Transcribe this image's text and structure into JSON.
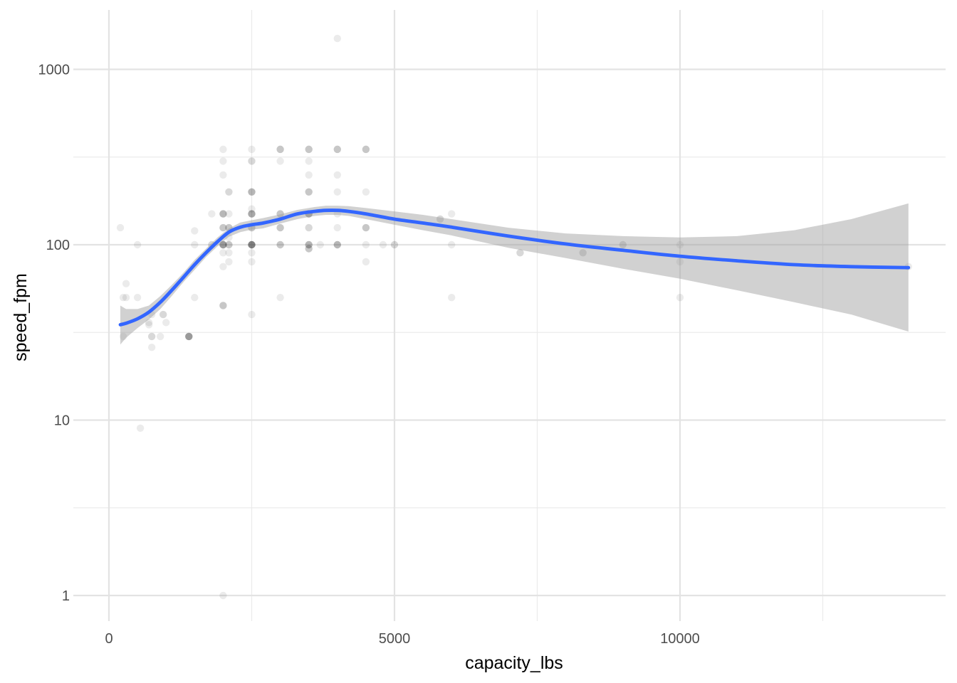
{
  "chart_data": {
    "type": "scatter",
    "title": "",
    "xlabel": "capacity_lbs",
    "ylabel": "speed_fpm",
    "xlim": [
      -50,
      14500
    ],
    "ylim_log10": [
      -0.15,
      0.375
    ],
    "y_scale": "log10",
    "grid": true,
    "xticks": [
      {
        "value": 0,
        "label": "0"
      },
      {
        "value": 5000,
        "label": "5000"
      },
      {
        "value": 10000,
        "label": "10000"
      }
    ],
    "x_minor_ticks": [
      2500,
      7500,
      12500
    ],
    "yticks": [
      {
        "value": 1,
        "label": "1"
      },
      {
        "value": 10,
        "label": "10"
      },
      {
        "value": 100,
        "label": "100"
      },
      {
        "value": 1000,
        "label": "1000"
      }
    ],
    "y_minor_ticks": [
      3.162,
      31.62,
      316.2
    ],
    "point_opacity": 0.08,
    "points": [
      [
        200,
        125
      ],
      [
        250,
        30
      ],
      [
        250,
        50
      ],
      [
        300,
        60
      ],
      [
        300,
        50
      ],
      [
        500,
        100
      ],
      [
        500,
        50
      ],
      [
        550,
        9
      ],
      [
        700,
        35
      ],
      [
        700,
        36
      ],
      [
        750,
        30
      ],
      [
        750,
        26
      ],
      [
        750,
        40
      ],
      [
        750,
        30
      ],
      [
        900,
        30
      ],
      [
        950,
        40
      ],
      [
        950,
        40
      ],
      [
        1000,
        36
      ],
      [
        1400,
        30
      ],
      [
        1400,
        30
      ],
      [
        1400,
        30
      ],
      [
        1400,
        30
      ],
      [
        1400,
        30
      ],
      [
        1400,
        30
      ],
      [
        1500,
        120
      ],
      [
        1500,
        100
      ],
      [
        1500,
        50
      ],
      [
        1800,
        150
      ],
      [
        1800,
        100
      ],
      [
        1800,
        100
      ],
      [
        2000,
        350
      ],
      [
        2000,
        300
      ],
      [
        2000,
        250
      ],
      [
        2000,
        150
      ],
      [
        2000,
        150
      ],
      [
        2000,
        150
      ],
      [
        2000,
        150
      ],
      [
        2000,
        125
      ],
      [
        2000,
        125
      ],
      [
        2000,
        125
      ],
      [
        2000,
        100
      ],
      [
        2000,
        100
      ],
      [
        2000,
        100
      ],
      [
        2000,
        100
      ],
      [
        2000,
        100
      ],
      [
        2000,
        100
      ],
      [
        2000,
        90
      ],
      [
        2000,
        75
      ],
      [
        2000,
        45
      ],
      [
        2000,
        45
      ],
      [
        2000,
        45
      ],
      [
        2000,
        1
      ],
      [
        2100,
        200
      ],
      [
        2100,
        200
      ],
      [
        2100,
        150
      ],
      [
        2100,
        125
      ],
      [
        2100,
        125
      ],
      [
        2100,
        125
      ],
      [
        2100,
        110
      ],
      [
        2100,
        100
      ],
      [
        2100,
        100
      ],
      [
        2100,
        100
      ],
      [
        2100,
        90
      ],
      [
        2100,
        80
      ],
      [
        2500,
        350
      ],
      [
        2500,
        300
      ],
      [
        2500,
        300
      ],
      [
        2500,
        200
      ],
      [
        2500,
        200
      ],
      [
        2500,
        200
      ],
      [
        2500,
        200
      ],
      [
        2500,
        160
      ],
      [
        2500,
        150
      ],
      [
        2500,
        150
      ],
      [
        2500,
        150
      ],
      [
        2500,
        150
      ],
      [
        2500,
        150
      ],
      [
        2500,
        125
      ],
      [
        2500,
        125
      ],
      [
        2500,
        125
      ],
      [
        2500,
        100
      ],
      [
        2500,
        100
      ],
      [
        2500,
        100
      ],
      [
        2500,
        100
      ],
      [
        2500,
        100
      ],
      [
        2500,
        100
      ],
      [
        2500,
        100
      ],
      [
        2500,
        100
      ],
      [
        2500,
        90
      ],
      [
        2500,
        80
      ],
      [
        2500,
        40
      ],
      [
        3000,
        350
      ],
      [
        3000,
        350
      ],
      [
        3000,
        350
      ],
      [
        3000,
        300
      ],
      [
        3000,
        150
      ],
      [
        3000,
        150
      ],
      [
        3000,
        150
      ],
      [
        3000,
        125
      ],
      [
        3000,
        125
      ],
      [
        3000,
        125
      ],
      [
        3000,
        100
      ],
      [
        3000,
        100
      ],
      [
        3000,
        100
      ],
      [
        3000,
        50
      ],
      [
        3500,
        350
      ],
      [
        3500,
        350
      ],
      [
        3500,
        350
      ],
      [
        3500,
        300
      ],
      [
        3500,
        250
      ],
      [
        3500,
        200
      ],
      [
        3500,
        200
      ],
      [
        3500,
        200
      ],
      [
        3500,
        150
      ],
      [
        3500,
        150
      ],
      [
        3500,
        150
      ],
      [
        3500,
        150
      ],
      [
        3500,
        150
      ],
      [
        3500,
        125
      ],
      [
        3500,
        125
      ],
      [
        3500,
        100
      ],
      [
        3500,
        100
      ],
      [
        3500,
        100
      ],
      [
        3500,
        100
      ],
      [
        3500,
        95
      ],
      [
        3500,
        95
      ],
      [
        3500,
        95
      ],
      [
        3700,
        100
      ],
      [
        4000,
        1500
      ],
      [
        4000,
        350
      ],
      [
        4000,
        350
      ],
      [
        4000,
        350
      ],
      [
        4000,
        250
      ],
      [
        4000,
        200
      ],
      [
        4000,
        150
      ],
      [
        4000,
        125
      ],
      [
        4000,
        100
      ],
      [
        4000,
        100
      ],
      [
        4000,
        100
      ],
      [
        4000,
        100
      ],
      [
        4500,
        350
      ],
      [
        4500,
        350
      ],
      [
        4500,
        350
      ],
      [
        4500,
        200
      ],
      [
        4500,
        125
      ],
      [
        4500,
        125
      ],
      [
        4500,
        125
      ],
      [
        4500,
        100
      ],
      [
        4500,
        80
      ],
      [
        4800,
        100
      ],
      [
        5000,
        100
      ],
      [
        5000,
        100
      ],
      [
        5800,
        140
      ],
      [
        5800,
        140
      ],
      [
        6000,
        150
      ],
      [
        6000,
        100
      ],
      [
        6000,
        50
      ],
      [
        7200,
        90
      ],
      [
        7200,
        90
      ],
      [
        8300,
        90
      ],
      [
        8300,
        90
      ],
      [
        9000,
        100
      ],
      [
        9000,
        100
      ],
      [
        10000,
        100
      ],
      [
        10000,
        80
      ],
      [
        10000,
        50
      ],
      [
        14000,
        75
      ]
    ],
    "smooth_fit": {
      "color": "#3366FF",
      "ribbon_color": "#999999",
      "ribbon_opacity": 0.45,
      "x": [
        200,
        300,
        500,
        700,
        900,
        1100,
        1300,
        1500,
        1700,
        1900,
        2100,
        2300,
        2500,
        2700,
        3000,
        3300,
        3600,
        3800,
        4000,
        4200,
        4500,
        5000,
        5500,
        6000,
        7000,
        8000,
        9000,
        10000,
        11000,
        12000,
        13000,
        14000
      ],
      "y": [
        35,
        35.7,
        37.8,
        41.3,
        47,
        55,
        65,
        77,
        90,
        104,
        118,
        126,
        130,
        133,
        140,
        150,
        155,
        157,
        157,
        155,
        150,
        140,
        133,
        126,
        112,
        101,
        93,
        86,
        81,
        77,
        75,
        74
      ],
      "lower": [
        27,
        29.5,
        33.5,
        37.5,
        43,
        51,
        61,
        72,
        85,
        98,
        111,
        118,
        122,
        124,
        132,
        140,
        146,
        148,
        148,
        146,
        140,
        130,
        121,
        113,
        96,
        84,
        73,
        64,
        55,
        47,
        40,
        32
      ],
      "upper": [
        45,
        43,
        43,
        45,
        51,
        59,
        69,
        82,
        95,
        110,
        124,
        134,
        138,
        142,
        149,
        158,
        164,
        167,
        167,
        166,
        162,
        155,
        148,
        140,
        125,
        116,
        112,
        110,
        112,
        121,
        140,
        172
      ]
    }
  }
}
